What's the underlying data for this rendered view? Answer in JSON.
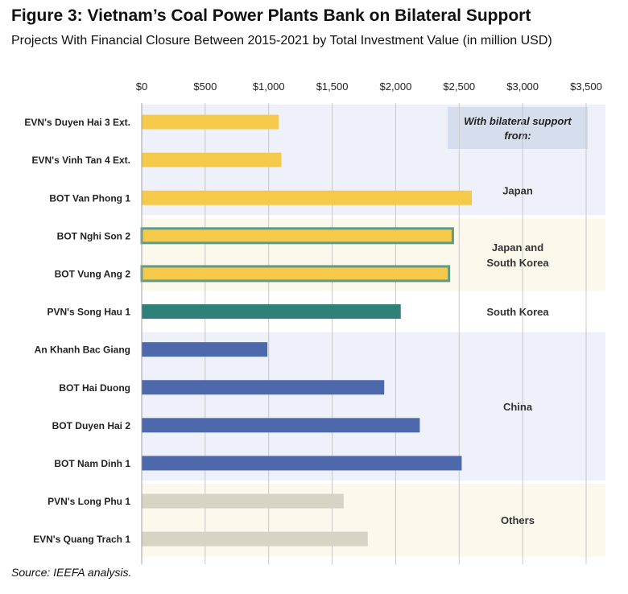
{
  "header": {
    "title": "Figure 3: Vietnam’s Coal Power Plants Bank on Bilateral Support",
    "subtitle": "Projects With Financial Closure Between 2015-2021 by Total Investment Value (in million USD)"
  },
  "footer": {
    "source": "Source: IEEFA analysis."
  },
  "legend_box": {
    "line1": "With bilateral support",
    "line2": "from:"
  },
  "chart_data": {
    "type": "bar",
    "orientation": "horizontal",
    "xlim": [
      0,
      3500
    ],
    "x_ticks": [
      0,
      500,
      1000,
      1500,
      2000,
      2500,
      3000,
      3500
    ],
    "x_tick_labels": [
      "$0",
      "$500",
      "$1,000",
      "$1,500",
      "$2,000",
      "$2,500",
      "$3,000",
      "$3,500"
    ],
    "categories": [
      "EVN's Duyen Hai 3 Ext.",
      "EVN's Vinh Tan 4 Ext.",
      "BOT Van Phong 1",
      "BOT Nghi Son 2",
      "BOT Vung Ang 2",
      "PVN's Song Hau 1",
      "An Khanh Bac Giang",
      "BOT Hai Duong",
      "BOT Duyen Hai 2",
      "BOT Nam Dinh 1",
      "PVN's Long Phu 1",
      "EVN's Quang Trach 1"
    ],
    "values": [
      1080,
      1100,
      2600,
      2450,
      2420,
      2040,
      990,
      1910,
      2190,
      2520,
      1590,
      1780
    ],
    "groups": [
      {
        "label": "Japan",
        "start": 0,
        "end": 2,
        "bar_color": "#F5CA4A",
        "band_color": "#EEF1FA",
        "outlined": false
      },
      {
        "label": "Japan and South Korea",
        "label_lines": [
          "Japan and",
          "South Korea"
        ],
        "start": 3,
        "end": 4,
        "bar_color": "#F5CA4A",
        "band_color": "#FDF8EC",
        "outlined": true,
        "outline_color": "#5F9B84"
      },
      {
        "label": "South Korea",
        "start": 5,
        "end": 5,
        "bar_color": "#2E8178",
        "band_color": "#FFFFFF",
        "outlined": false
      },
      {
        "label": "China",
        "start": 6,
        "end": 9,
        "bar_color": "#4D69AC",
        "band_color": "#EEF1FA",
        "outlined": false
      },
      {
        "label": "Others",
        "start": 10,
        "end": 11,
        "bar_color": "#D7D3C5",
        "band_color": "#FDF8EC",
        "outlined": false
      }
    ],
    "grid": true
  }
}
